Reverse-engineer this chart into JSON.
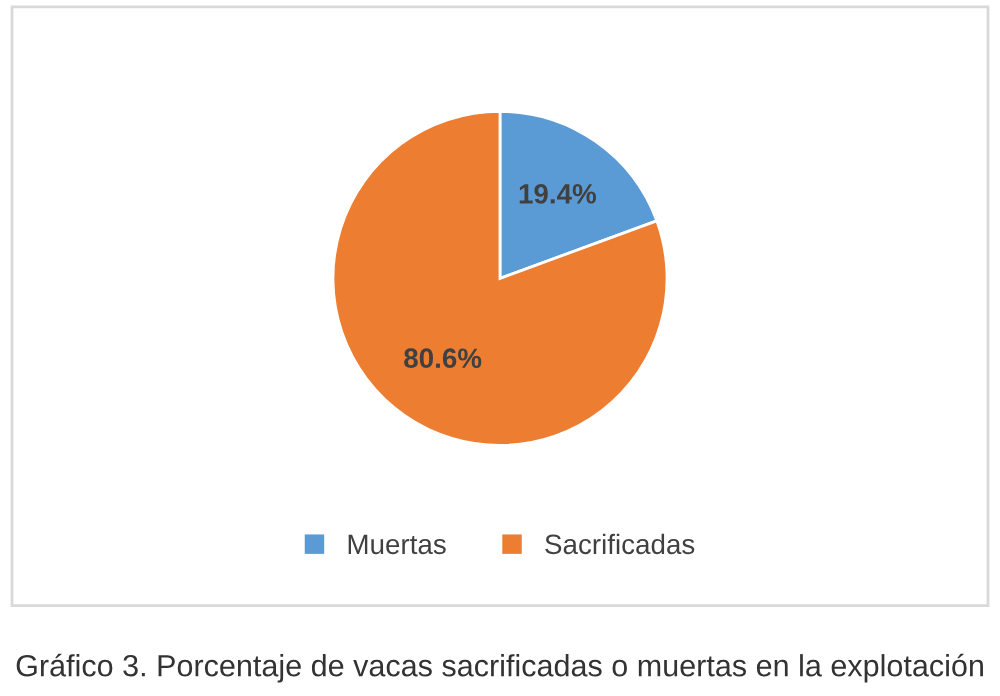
{
  "chart_data": {
    "type": "pie",
    "categories": [
      "Muertas",
      "Sacrificadas"
    ],
    "values": [
      19.4,
      80.6
    ],
    "colors": [
      "#5b9bd5",
      "#ed7d31"
    ],
    "value_labels": [
      "19.4%",
      "80.6%"
    ],
    "legend": "bottom",
    "annotations": [
      "Gráfico 3. Porcentaje de vacas sacrificadas o muertas en la explotación"
    ]
  }
}
